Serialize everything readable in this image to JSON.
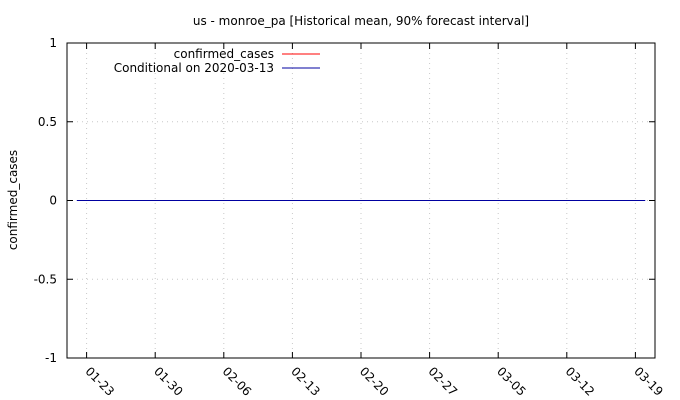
{
  "chart_data": {
    "type": "line",
    "title": "us - monroe_pa [Historical mean, 90% forecast interval]",
    "xlabel": "",
    "ylabel": "confirmed_cases",
    "ylim": [
      -1,
      1
    ],
    "yticks": [
      "1",
      "0.5",
      "0",
      "-0.5",
      "-1"
    ],
    "ytick_values": [
      1,
      0.5,
      0,
      -0.5,
      -1
    ],
    "x_start": "2020-01-21",
    "x_end": "2020-03-21",
    "xticks": [
      "01-23",
      "01-30",
      "02-06",
      "02-13",
      "02-20",
      "02-27",
      "03-05",
      "03-12",
      "03-19"
    ],
    "xtick_dates": [
      "2020-01-23",
      "2020-01-30",
      "2020-02-06",
      "2020-02-13",
      "2020-02-20",
      "2020-02-27",
      "2020-03-05",
      "2020-03-12",
      "2020-03-19"
    ],
    "grid": true,
    "legend_position": "top-left",
    "series": [
      {
        "name": "confirmed_cases",
        "color": "#ff0000",
        "x": [],
        "values": []
      },
      {
        "name": "Conditional on 2020-03-13",
        "color": "#0000a0",
        "x": [
          "2020-01-22",
          "2020-03-20"
        ],
        "values": [
          0,
          0
        ]
      }
    ]
  }
}
